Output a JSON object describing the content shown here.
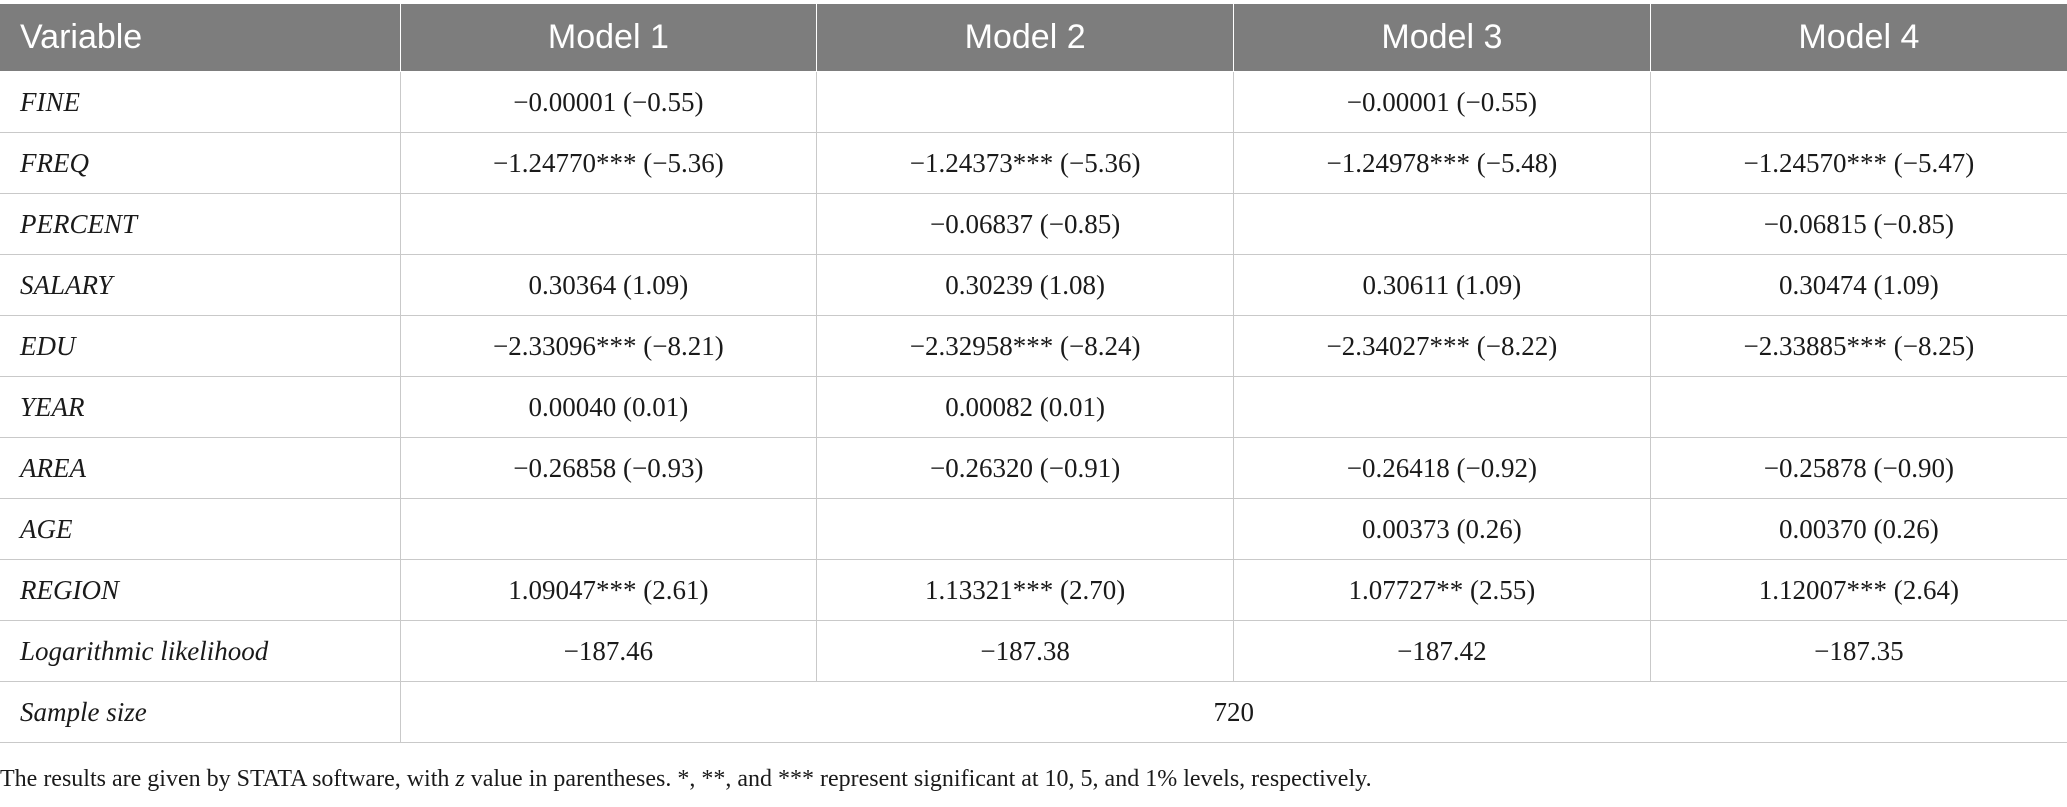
{
  "table": {
    "headers": [
      "Variable",
      "Model 1",
      "Model 2",
      "Model 3",
      "Model 4"
    ],
    "rows": [
      {
        "variable": "FINE",
        "m1": "−0.00001 (−0.55)",
        "m2": "",
        "m3": "−0.00001 (−0.55)",
        "m4": ""
      },
      {
        "variable": "FREQ",
        "m1": "−1.24770*** (−5.36)",
        "m2": "−1.24373*** (−5.36)",
        "m3": "−1.24978*** (−5.48)",
        "m4": "−1.24570*** (−5.47)"
      },
      {
        "variable": "PERCENT",
        "m1": "",
        "m2": "−0.06837 (−0.85)",
        "m3": "",
        "m4": "−0.06815 (−0.85)"
      },
      {
        "variable": "SALARY",
        "m1": "0.30364 (1.09)",
        "m2": "0.30239 (1.08)",
        "m3": "0.30611 (1.09)",
        "m4": "0.30474 (1.09)"
      },
      {
        "variable": "EDU",
        "m1": "−2.33096*** (−8.21)",
        "m2": "−2.32958*** (−8.24)",
        "m3": "−2.34027*** (−8.22)",
        "m4": "−2.33885*** (−8.25)"
      },
      {
        "variable": "YEAR",
        "m1": "0.00040 (0.01)",
        "m2": "0.00082 (0.01)",
        "m3": "",
        "m4": ""
      },
      {
        "variable": "AREA",
        "m1": "−0.26858 (−0.93)",
        "m2": "−0.26320 (−0.91)",
        "m3": "−0.26418 (−0.92)",
        "m4": "−0.25878 (−0.90)"
      },
      {
        "variable": "AGE",
        "m1": "",
        "m2": "",
        "m3": "0.00373 (0.26)",
        "m4": "0.00370 (0.26)"
      },
      {
        "variable": "REGION",
        "m1": "1.09047*** (2.61)",
        "m2": "1.13321*** (2.70)",
        "m3": "1.07727** (2.55)",
        "m4": "1.12007*** (2.64)"
      },
      {
        "variable": "Logarithmic likelihood",
        "m1": "−187.46",
        "m2": "−187.38",
        "m3": "−187.42",
        "m4": "−187.35"
      }
    ],
    "sample_size": {
      "label": "Sample size",
      "value": "720"
    }
  },
  "note": {
    "before": "The results are given by STATA software, with ",
    "italic": "z",
    "after": " value in parentheses. *, **, and *** represent significant at 10, 5, and 1% levels, respectively."
  }
}
